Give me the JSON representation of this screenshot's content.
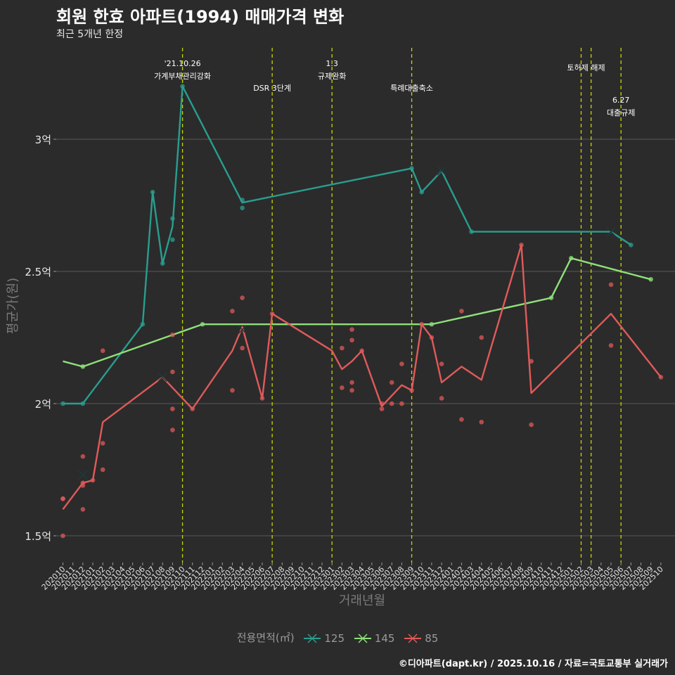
{
  "title": "회원 한효 아파트(1994) 매매가격 변화",
  "subtitle": "최근 5개년 한정",
  "caption": "©디아파트(dapt.kr) / 2025.10.16 / 자료=국토교통부 실거래가",
  "colors": {
    "s125": "#2a9d8f",
    "s145": "#8fe07a",
    "s85": "#e05a5a",
    "bg": "#2b2b2b",
    "grid": "#5a5a5a",
    "vline": "#c8d400"
  },
  "chart_data": {
    "type": "line",
    "title": "회원 한효 아파트(1994) 매매가격 변화",
    "xlabel": "거래년월",
    "ylabel": "평균가(원)",
    "ylim": [
      1.42,
      3.5
    ],
    "yticks": [
      {
        "v": 1.5,
        "label": "1.5억"
      },
      {
        "v": 2.0,
        "label": "2억"
      },
      {
        "v": 2.5,
        "label": "2.5억"
      },
      {
        "v": 3.0,
        "label": "3억"
      }
    ],
    "categories": [
      "202010",
      "202011",
      "202012",
      "202101",
      "202102",
      "202103",
      "202104",
      "202105",
      "202106",
      "202107",
      "202108",
      "202109",
      "202110",
      "202111",
      "202112",
      "202201",
      "202202",
      "202203",
      "202204",
      "202205",
      "202206",
      "202207",
      "202208",
      "202209",
      "202210",
      "202211",
      "202212",
      "202301",
      "202302",
      "202303",
      "202304",
      "202305",
      "202306",
      "202307",
      "202308",
      "202309",
      "202310",
      "202311",
      "202312",
      "202401",
      "202402",
      "202403",
      "202404",
      "202405",
      "202406",
      "202407",
      "202408",
      "202409",
      "202410",
      "202411",
      "202412",
      "202501",
      "202502",
      "202503",
      "202504",
      "202505",
      "202506",
      "202507",
      "202508",
      "202509",
      "202510"
    ],
    "legend_title": "전용면적(㎡)",
    "series": [
      {
        "name": "125",
        "key": "s125",
        "line": [
          [
            0,
            2.0
          ],
          [
            2,
            2.0
          ],
          [
            8,
            2.3
          ],
          [
            9,
            2.8
          ],
          [
            10,
            2.53
          ],
          [
            11,
            2.67
          ],
          [
            12,
            3.2
          ],
          [
            18,
            2.76
          ],
          [
            35,
            2.89
          ],
          [
            36,
            2.8
          ],
          [
            38,
            2.88
          ],
          [
            41,
            2.65
          ],
          [
            55,
            2.65
          ],
          [
            57,
            2.6
          ]
        ],
        "points": [
          [
            0,
            2.0
          ],
          [
            2,
            2.0
          ],
          [
            8,
            2.3
          ],
          [
            9,
            2.8
          ],
          [
            10,
            2.53
          ],
          [
            11,
            2.62
          ],
          [
            11,
            2.7
          ],
          [
            12,
            3.2
          ],
          [
            18,
            2.77
          ],
          [
            18,
            2.74
          ],
          [
            35,
            2.89
          ],
          [
            36,
            2.8
          ],
          [
            41,
            2.65
          ],
          [
            57,
            2.6
          ]
        ],
        "crosses": [
          [
            38,
            2.88
          ],
          [
            55,
            2.65
          ]
        ]
      },
      {
        "name": "145",
        "key": "s145",
        "line": [
          [
            0,
            2.16
          ],
          [
            2,
            2.14
          ],
          [
            14,
            2.3
          ],
          [
            37,
            2.3
          ],
          [
            49,
            2.4
          ],
          [
            51,
            2.55
          ],
          [
            59,
            2.47
          ]
        ],
        "points": [
          [
            2,
            2.14
          ],
          [
            14,
            2.3
          ],
          [
            37,
            2.3
          ],
          [
            49,
            2.4
          ],
          [
            51,
            2.55
          ],
          [
            59,
            2.47
          ]
        ],
        "crosses": []
      },
      {
        "name": "85",
        "key": "s85",
        "line": [
          [
            0,
            1.6
          ],
          [
            2,
            1.7
          ],
          [
            3,
            1.71
          ],
          [
            4,
            1.93
          ],
          [
            10,
            2.1
          ],
          [
            13,
            1.98
          ],
          [
            17,
            2.2
          ],
          [
            18,
            2.29
          ],
          [
            20,
            2.02
          ],
          [
            21,
            2.34
          ],
          [
            27,
            2.2
          ],
          [
            28,
            2.13
          ],
          [
            29,
            2.16
          ],
          [
            30,
            2.2
          ],
          [
            32,
            1.99
          ],
          [
            33,
            2.03
          ],
          [
            34,
            2.07
          ],
          [
            35,
            2.05
          ],
          [
            36,
            2.3
          ],
          [
            37,
            2.25
          ],
          [
            38,
            2.08
          ],
          [
            40,
            2.14
          ],
          [
            42,
            2.09
          ],
          [
            46,
            2.6
          ],
          [
            47,
            2.04
          ],
          [
            55,
            2.34
          ],
          [
            60,
            2.1
          ]
        ],
        "points": [
          [
            0,
            1.5
          ],
          [
            0,
            1.64
          ],
          [
            0,
            1.64
          ],
          [
            2,
            1.6
          ],
          [
            2,
            1.69
          ],
          [
            2,
            1.7
          ],
          [
            2,
            1.8
          ],
          [
            3,
            1.71
          ],
          [
            4,
            1.75
          ],
          [
            4,
            1.85
          ],
          [
            4,
            2.2
          ],
          [
            11,
            1.9
          ],
          [
            11,
            1.98
          ],
          [
            11,
            2.12
          ],
          [
            11,
            2.26
          ],
          [
            13,
            1.98
          ],
          [
            17,
            2.05
          ],
          [
            17,
            2.35
          ],
          [
            18,
            2.21
          ],
          [
            18,
            2.4
          ],
          [
            20,
            2.02
          ],
          [
            21,
            2.34
          ],
          [
            28,
            2.06
          ],
          [
            28,
            2.21
          ],
          [
            29,
            2.05
          ],
          [
            29,
            2.08
          ],
          [
            29,
            2.24
          ],
          [
            29,
            2.28
          ],
          [
            30,
            2.2
          ],
          [
            32,
            1.98
          ],
          [
            32,
            2.0
          ],
          [
            33,
            2.0
          ],
          [
            33,
            2.08
          ],
          [
            34,
            2.0
          ],
          [
            34,
            2.15
          ],
          [
            35,
            2.05
          ],
          [
            36,
            2.3
          ],
          [
            37,
            2.25
          ],
          [
            38,
            2.02
          ],
          [
            38,
            2.15
          ],
          [
            40,
            1.94
          ],
          [
            40,
            2.35
          ],
          [
            42,
            1.93
          ],
          [
            42,
            2.25
          ],
          [
            46,
            2.6
          ],
          [
            47,
            1.92
          ],
          [
            47,
            2.16
          ],
          [
            55,
            2.22
          ],
          [
            55,
            2.45
          ],
          [
            60,
            2.1
          ]
        ],
        "crosses": [
          [
            2,
            1.73
          ],
          [
            10,
            2.1
          ],
          [
            18,
            2.28
          ]
        ]
      }
    ],
    "events": [
      {
        "x": 12,
        "lines": [
          "'21.10.26",
          "가계부채관리강화"
        ],
        "row": 0
      },
      {
        "x": 21,
        "lines": [
          "DSR 3단계"
        ],
        "row": 2
      },
      {
        "x": 27,
        "lines": [
          "1.3",
          "규제완화"
        ],
        "row": 0
      },
      {
        "x": 35,
        "lines": [
          "특례대출축소"
        ],
        "row": 2
      },
      {
        "x": 52,
        "lines": [
          "토허제 해제"
        ],
        "row": 1,
        "anchor_x": 53
      },
      {
        "x": 53,
        "lines": [],
        "row": 1
      },
      {
        "x": 56,
        "lines": [
          "6.27",
          "대출규제"
        ],
        "row": 3
      }
    ]
  }
}
